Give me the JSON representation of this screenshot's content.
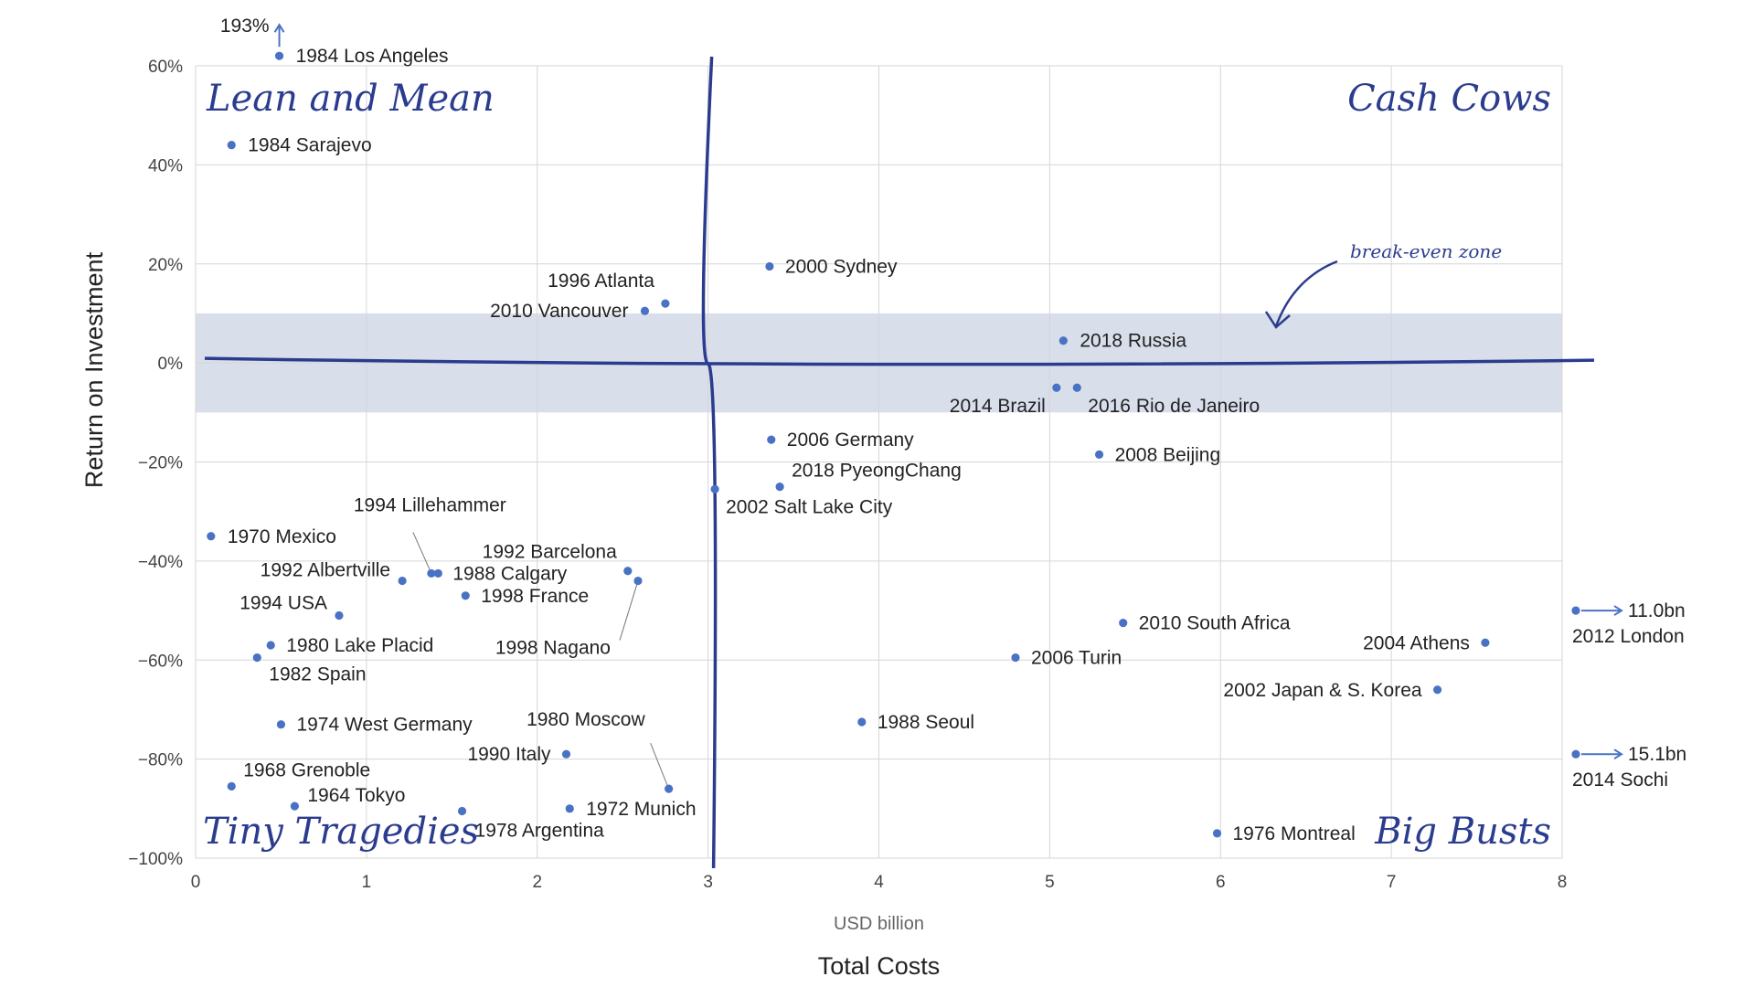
{
  "chart_data": {
    "type": "scatter",
    "title": "",
    "xlabel": "Total Costs",
    "x_units": "USD billion",
    "ylabel": "Return on Investment",
    "xlim": [
      0,
      8
    ],
    "ylim": [
      -100,
      60
    ],
    "x_ticks": [
      "0",
      "1",
      "2",
      "3",
      "4",
      "5",
      "6",
      "7",
      "8"
    ],
    "y_ticks": [
      "60%",
      "40%",
      "20%",
      "0%",
      "−20%",
      "−40%",
      "−60%",
      "−80%",
      "−100%"
    ],
    "grid": true,
    "marker_color": "#4a72c4",
    "accent_color": "#2b3c8f",
    "band_color": "#d9deeb",
    "break_even_band": [
      -10,
      10
    ],
    "break_even_label": "break-even zone",
    "quadrant_lines": {
      "x": 3,
      "y": 0
    },
    "quadrants": [
      "Lean and Mean",
      "Cash Cows",
      "Tiny Tragedies",
      "Big Busts"
    ],
    "points": [
      {
        "label": "1984 Los Angeles",
        "x": 0.49,
        "y": 62,
        "actual_y_label": "193%"
      },
      {
        "label": "1984 Sarajevo",
        "x": 0.21,
        "y": 44
      },
      {
        "label": "2000 Sydney",
        "x": 3.36,
        "y": 19.5
      },
      {
        "label": "1996 Atlanta",
        "x": 2.75,
        "y": 12
      },
      {
        "label": "2010 Vancouver",
        "x": 2.63,
        "y": 10.5
      },
      {
        "label": "2018 Russia",
        "x": 5.08,
        "y": 4.5
      },
      {
        "label": "2014 Brazil",
        "x": 5.04,
        "y": -5
      },
      {
        "label": "2016 Rio de Janeiro",
        "x": 5.16,
        "y": -5
      },
      {
        "label": "2006 Germany",
        "x": 3.37,
        "y": -15.5
      },
      {
        "label": "2008 Beijing",
        "x": 5.29,
        "y": -18.5
      },
      {
        "label": "2018 PyeongChang",
        "x": 3.42,
        "y": -25
      },
      {
        "label": "2002 Salt Lake City",
        "x": 3.04,
        "y": -25.5
      },
      {
        "label": "1970 Mexico",
        "x": 0.09,
        "y": -35
      },
      {
        "label": "1992 Barcelona",
        "x": 2.53,
        "y": -42
      },
      {
        "label": "1998 Nagano",
        "x": 2.59,
        "y": -44
      },
      {
        "label": "1994 Lillehammer",
        "x": 1.38,
        "y": -42.5
      },
      {
        "label": "1988 Calgary",
        "x": 1.42,
        "y": -42.5
      },
      {
        "label": "1992 Albertville",
        "x": 1.21,
        "y": -44
      },
      {
        "label": "1998 France",
        "x": 1.58,
        "y": -47
      },
      {
        "label": "1994 USA",
        "x": 0.84,
        "y": -51
      },
      {
        "label": "1980 Lake Placid",
        "x": 0.44,
        "y": -57
      },
      {
        "label": "1982 Spain",
        "x": 0.36,
        "y": -59.5
      },
      {
        "label": "1974 West Germany",
        "x": 0.5,
        "y": -73
      },
      {
        "label": "1980 Moscow",
        "x": 2.77,
        "y": -86
      },
      {
        "label": "1990 Italy",
        "x": 2.17,
        "y": -79
      },
      {
        "label": "1968 Grenoble",
        "x": 0.21,
        "y": -85.5
      },
      {
        "label": "1964 Tokyo",
        "x": 0.58,
        "y": -89.5
      },
      {
        "label": "1978 Argentina",
        "x": 1.56,
        "y": -90.5
      },
      {
        "label": "1972 Munich",
        "x": 2.19,
        "y": -90
      },
      {
        "label": "2010 South Africa",
        "x": 5.43,
        "y": -52.5
      },
      {
        "label": "2006 Turin",
        "x": 4.8,
        "y": -59.5
      },
      {
        "label": "1988 Seoul",
        "x": 3.9,
        "y": -72.5
      },
      {
        "label": "1976 Montreal",
        "x": 5.98,
        "y": -95
      },
      {
        "label": "2004 Athens",
        "x": 7.55,
        "y": -56.5
      },
      {
        "label": "2002 Japan & S. Korea",
        "x": 7.27,
        "y": -66
      }
    ],
    "off_scale": [
      {
        "label": "2012 London",
        "value_label": "11.0bn",
        "y": -50
      },
      {
        "label": "2014 Sochi",
        "value_label": "15.1bn",
        "y": -79
      }
    ]
  }
}
